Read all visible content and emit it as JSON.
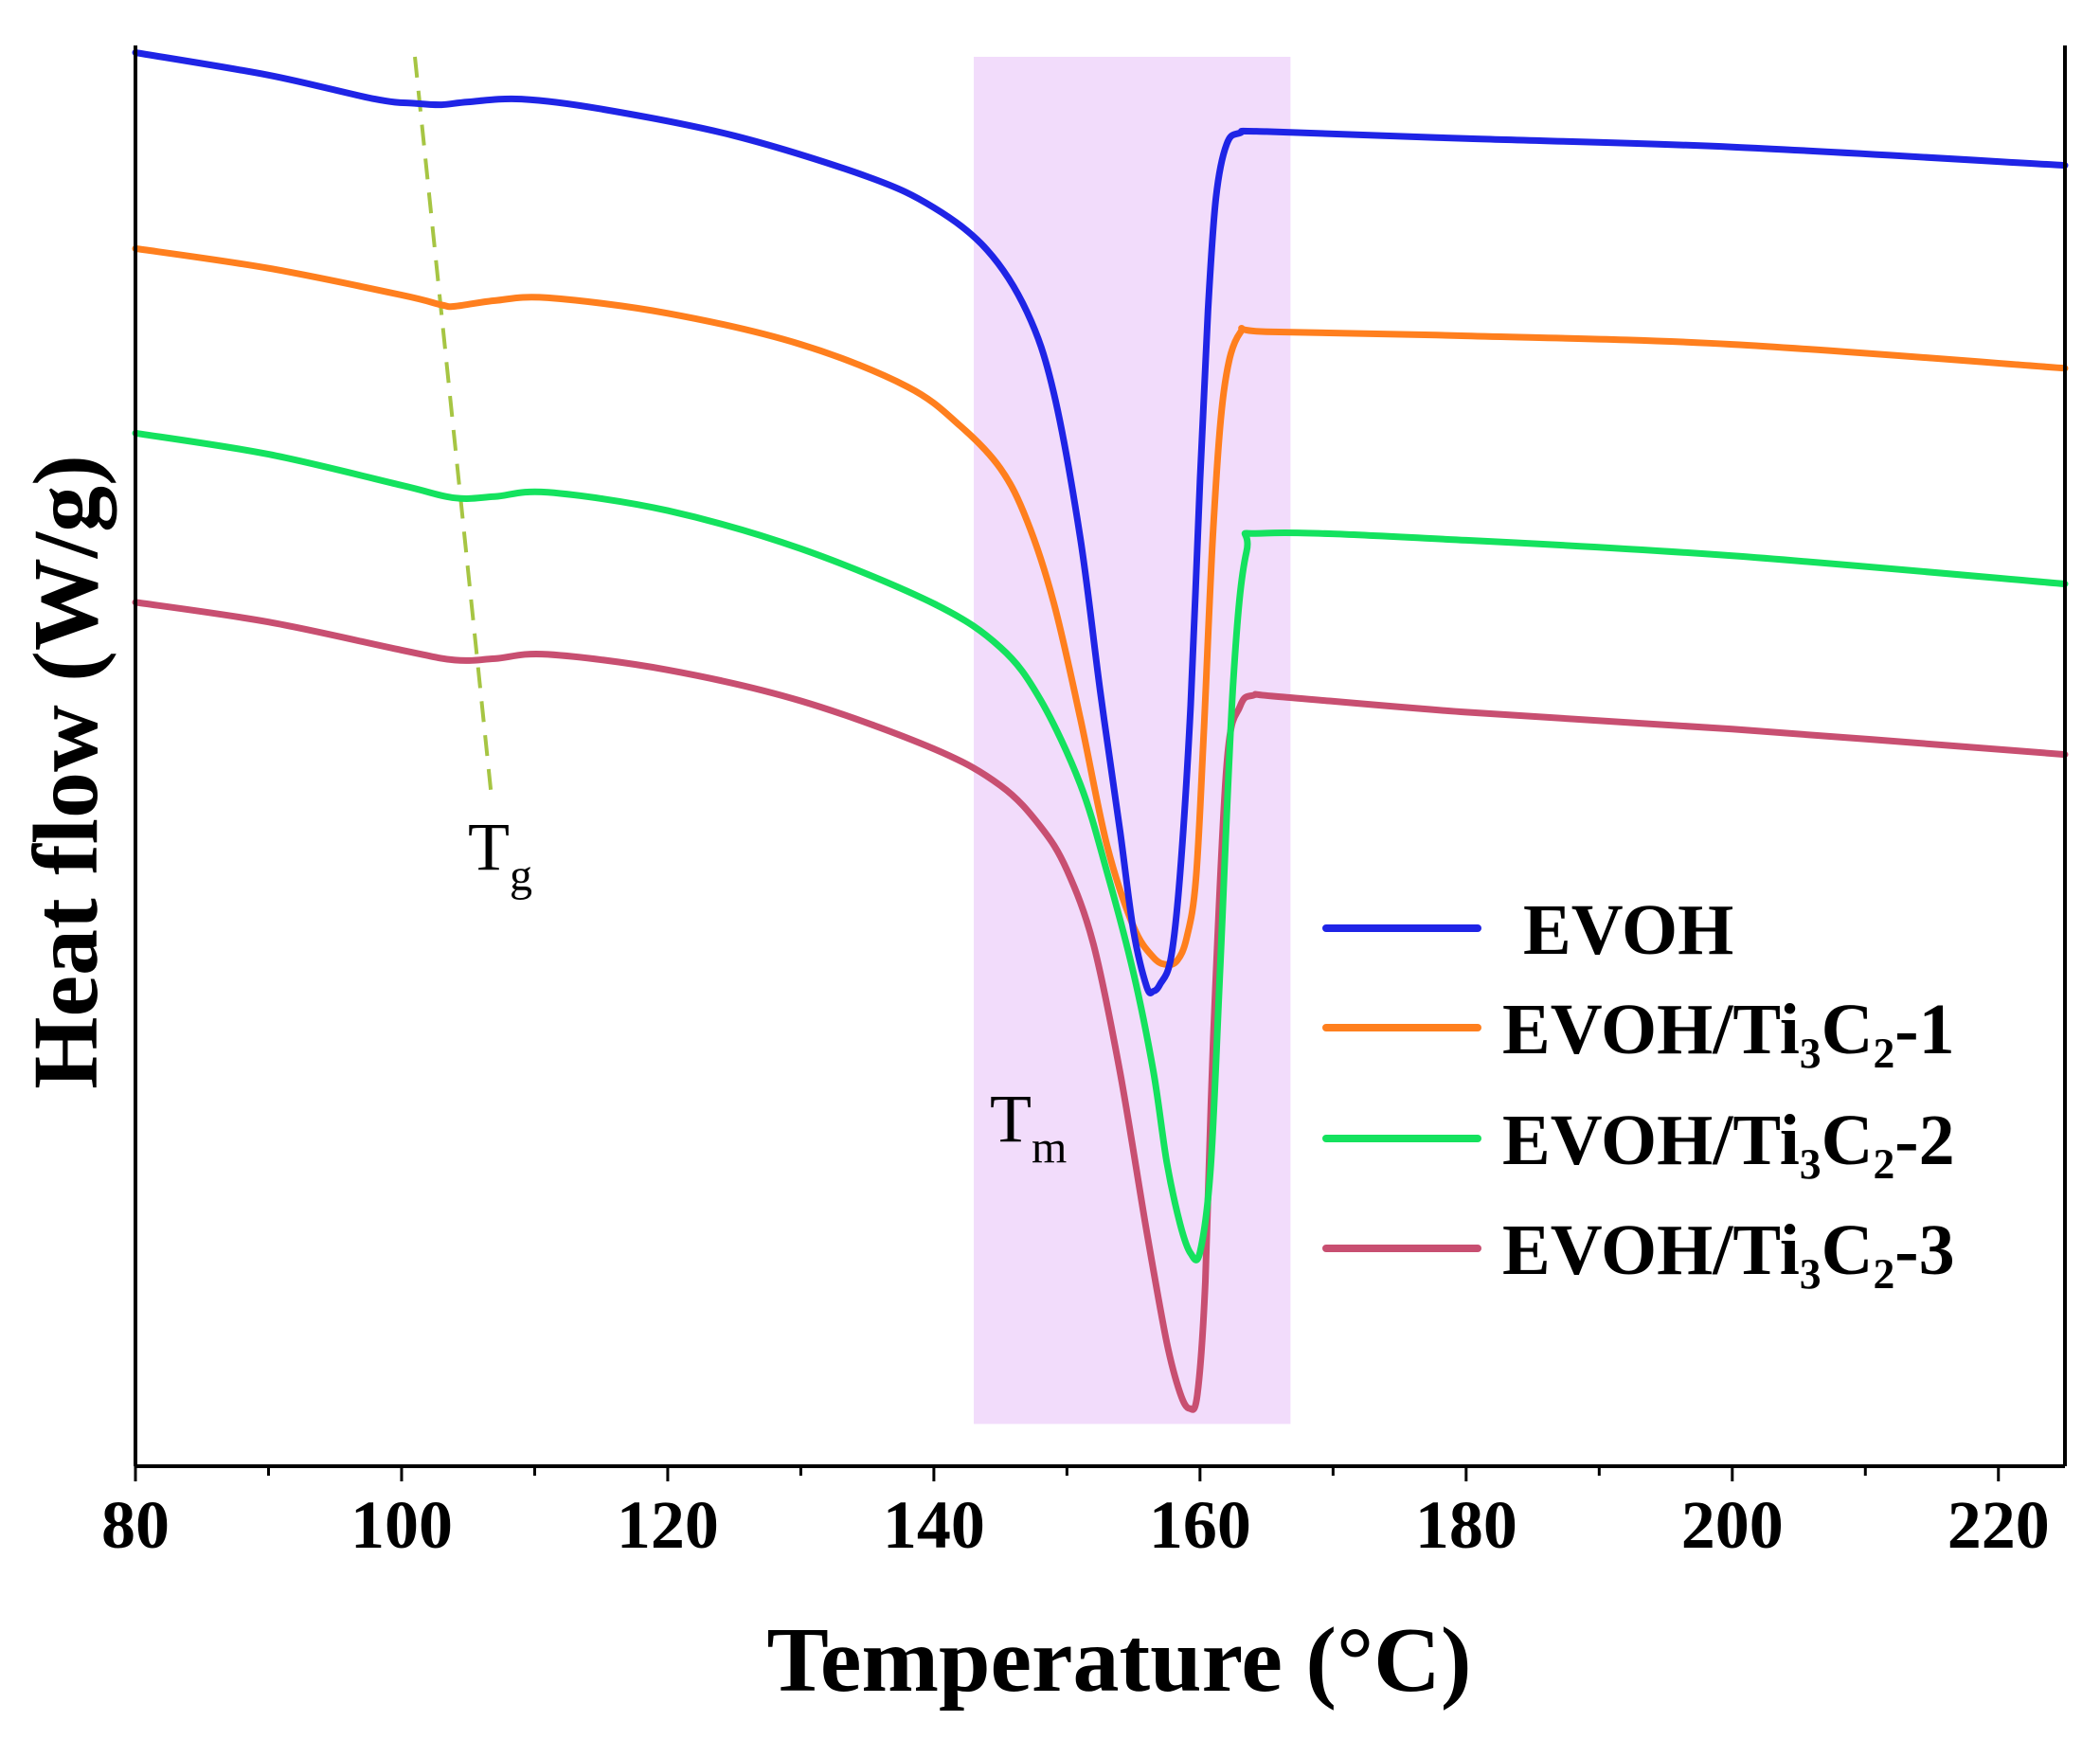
{
  "chart_data": {
    "type": "line",
    "title": "",
    "xlabel": "Temperature (°C)",
    "ylabel": "Heat flow (W/g)",
    "xlim": [
      80,
      225
    ],
    "ylim": [
      0,
      100
    ],
    "x_ticks": [
      "80",
      "100",
      "120",
      "140",
      "160",
      "180",
      "200",
      "220"
    ],
    "y_ticks_shown": false,
    "grid": false,
    "legend_position": "bottom-right",
    "shaded_region": {
      "x_start": 143,
      "x_end": 166.8,
      "y_range": [
        3,
        100
      ],
      "color": "#f2dcfb",
      "label": "Tm"
    },
    "annotations": [
      {
        "id": "tg",
        "main": "T",
        "sub": "g",
        "x": 107.5,
        "y": 42
      },
      {
        "id": "tm",
        "main": "T",
        "sub": "m",
        "x": 144,
        "y": 20.5
      }
    ],
    "tg_line": {
      "color": "#a6c543",
      "x": [
        101,
        106.7
      ],
      "y": [
        100,
        48
      ]
    },
    "series": [
      {
        "name": "EVOH",
        "color": "#1f24e6",
        "x": [
          80,
          90,
          98,
          101,
          103,
          105,
          109,
          115,
          125,
          135,
          140,
          144,
          147,
          149,
          151,
          152.5,
          154,
          155,
          156,
          156.5,
          157,
          157.8,
          158.5,
          159.3,
          160,
          160.6,
          161.2,
          162,
          163,
          165,
          180,
          200,
          225
        ],
        "y": [
          100.3,
          98.7,
          97,
          96.7,
          96.6,
          96.8,
          97,
          96.3,
          94.4,
          91.5,
          89.3,
          86.3,
          81.9,
          76.2,
          65.9,
          55,
          45,
          38,
          34,
          33.7,
          34.2,
          36,
          42,
          54,
          70,
          82,
          90,
          93.8,
          94.6,
          94.7,
          94.2,
          93.6,
          92.3
        ]
      },
      {
        "name": "EVOH/Ti₃C₂-1",
        "color": "#ff7f1e",
        "x": [
          80,
          90,
          100,
          103,
          104,
          107,
          111,
          120,
          130,
          138,
          142,
          145,
          147,
          149,
          151,
          153,
          155,
          156.5,
          157.5,
          158.3,
          159,
          159.7,
          160.3,
          161,
          161.8,
          163,
          165,
          180,
          200,
          225
        ],
        "y": [
          86.4,
          85,
          83.1,
          82.4,
          82.3,
          82.7,
          82.9,
          81.8,
          79.6,
          76.6,
          73.8,
          70.8,
          67.1,
          61.3,
          53.1,
          44.1,
          38.3,
          36.1,
          35.6,
          35.9,
          37.5,
          41.7,
          52.4,
          66.6,
          76.3,
          80.4,
          80.5,
          80.2,
          79.6,
          77.9
        ]
      },
      {
        "name": "EVOH/Ti₃C₂-2",
        "color": "#14e25e",
        "x": [
          80,
          90,
          100,
          104,
          107,
          111,
          120,
          130,
          140,
          145,
          148,
          151,
          153,
          155,
          156.5,
          157.5,
          158.5,
          159.3,
          160,
          160.8,
          161.5,
          162.5,
          163.5,
          165,
          180,
          200,
          225
        ],
        "y": [
          73.3,
          71.8,
          69.6,
          68.7,
          68.8,
          69.1,
          67.8,
          65.1,
          61.2,
          58.1,
          54.4,
          48.4,
          42.2,
          35,
          28,
          21.6,
          17.2,
          15.1,
          15.2,
          21.2,
          35,
          55.7,
          64.9,
          66.2,
          65.7,
          64.6,
          62.6
        ]
      },
      {
        "name": "EVOH/Ti₃C₂-3",
        "color": "#c84f71",
        "x": [
          80,
          90,
          100,
          104,
          107,
          111,
          120,
          130,
          140,
          145,
          148,
          150,
          152,
          154,
          156,
          157.5,
          158.5,
          159.2,
          159.8,
          160.4,
          161,
          162,
          163,
          164,
          166,
          180,
          200,
          225
        ],
        "y": [
          61.3,
          59.9,
          57.9,
          57.2,
          57.3,
          57.6,
          56.5,
          54.3,
          50.9,
          48.3,
          45.4,
          42.3,
          37,
          27.9,
          16.6,
          8.8,
          5.2,
          4.1,
          5.1,
          13.1,
          30.4,
          49.7,
          53.9,
          54.7,
          54.6,
          53.5,
          52.3,
          50.5
        ]
      }
    ]
  }
}
